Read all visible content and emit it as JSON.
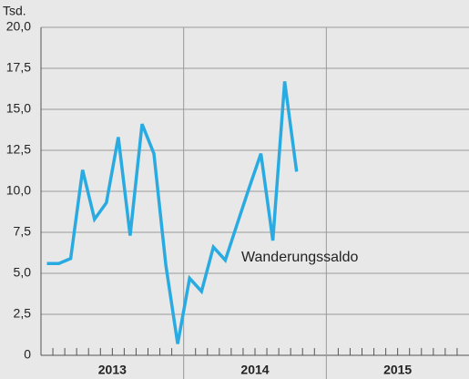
{
  "chart_data": {
    "type": "line",
    "y_label": "Tsd.",
    "annotation": "Wanderungssaldo",
    "groups": [
      "2013",
      "2014",
      "2015"
    ],
    "categories": [
      null,
      null,
      null,
      null,
      null,
      null,
      null,
      null,
      null,
      null,
      null,
      null,
      null,
      null,
      null,
      null,
      null,
      null,
      null,
      null,
      null,
      null,
      null,
      null,
      null,
      null,
      null,
      null,
      null,
      null,
      null,
      null,
      null,
      null,
      null,
      null
    ],
    "series": [
      {
        "name": "Wanderungssaldo",
        "color": "#29abe2",
        "values": [
          5.6,
          5.6,
          5.9,
          11.3,
          8.3,
          9.3,
          13.3,
          7.3,
          14.1,
          12.3,
          5.5,
          0.7,
          4.7,
          3.9,
          6.6,
          5.8,
          8.0,
          10.2,
          12.3,
          7.0,
          16.7,
          11.2,
          null,
          null,
          null,
          null,
          null,
          null,
          null,
          null,
          null,
          null,
          null,
          null,
          null,
          null
        ]
      }
    ],
    "ylim": [
      0,
      20
    ],
    "yticks": [
      0,
      {
        "value": 2.5,
        "label": "2,5"
      },
      {
        "value": 5,
        "label": "5,0"
      },
      {
        "value": 7.5,
        "label": "7,5"
      },
      {
        "value": 10,
        "label": "10,0"
      },
      {
        "value": 12.5,
        "label": "12,5"
      },
      {
        "value": 15,
        "label": "15,0"
      },
      {
        "value": 17.5,
        "label": "17,5"
      },
      {
        "value": 20,
        "label": "20,0"
      }
    ],
    "grid": true
  }
}
